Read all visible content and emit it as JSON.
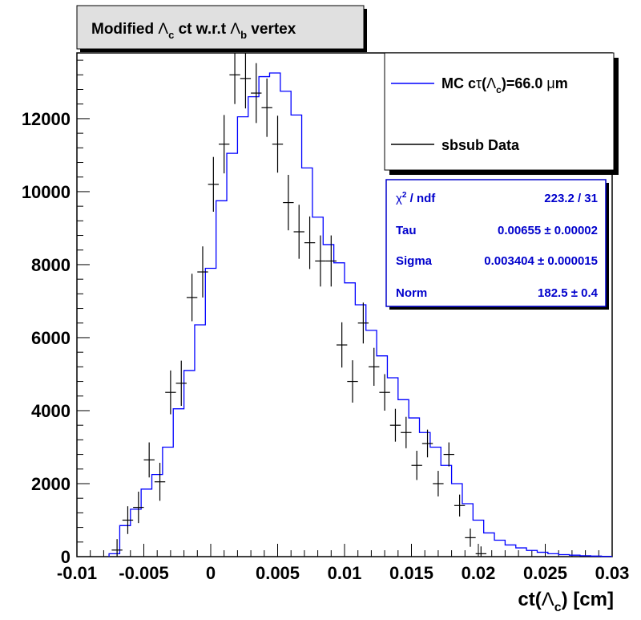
{
  "chart_data": {
    "type": "line",
    "title": {
      "prefix": "Modified ",
      "lambda": "Λ",
      "sub_c": "c",
      "mid": " ct w.r.t ",
      "sub_b": "b",
      "suffix": " vertex"
    },
    "xlabel": "ct(Λc) [cm]",
    "xlabel_parts": {
      "pre": "ct(",
      "lambda": "Λ",
      "sub": "c",
      "post": ") [cm]"
    },
    "ylabel": "",
    "xlim": [
      -0.01,
      0.03
    ],
    "ylim": [
      0,
      13800
    ],
    "x_ticks": [
      "-0.01",
      "-0.005",
      "0",
      "0.005",
      "0.01",
      "0.015",
      "0.02",
      "0.025",
      "0.03"
    ],
    "x_tick_values": [
      -0.01,
      -0.005,
      0,
      0.005,
      0.01,
      0.015,
      0.02,
      0.025,
      0.03
    ],
    "y_ticks": [
      "0",
      "2000",
      "4000",
      "6000",
      "8000",
      "10000",
      "12000"
    ],
    "y_tick_values": [
      0,
      2000,
      4000,
      6000,
      8000,
      10000,
      12000
    ],
    "bin_width": 0.0008,
    "series": [
      {
        "name": "MC cτ(Λc)=66.0 μm",
        "style": "histogram",
        "color": "#0000ff",
        "bin_edges": [
          -0.0076,
          -0.0068,
          -0.006,
          -0.0052,
          -0.0044,
          -0.0036,
          -0.0028,
          -0.002,
          -0.0012,
          -0.0004,
          0.0004,
          0.0012,
          0.002,
          0.0028,
          0.0036,
          0.0044,
          0.0052,
          0.006,
          0.0068,
          0.0076,
          0.0084,
          0.0092,
          0.01,
          0.0108,
          0.0116,
          0.0124,
          0.0132,
          0.014,
          0.0148,
          0.0156,
          0.0164,
          0.0172,
          0.018,
          0.0188,
          0.0196,
          0.0204,
          0.0212,
          0.022,
          0.0228,
          0.0236,
          0.0244,
          0.0252,
          0.026,
          0.0268,
          0.0276,
          0.0284,
          0.0292,
          0.03
        ],
        "values": [
          80,
          850,
          1300,
          1850,
          2250,
          3000,
          4050,
          5100,
          6350,
          7900,
          9750,
          11050,
          12050,
          12600,
          13150,
          13250,
          12750,
          12100,
          10650,
          9300,
          8550,
          8050,
          7500,
          6900,
          6200,
          5500,
          4900,
          4300,
          3800,
          3400,
          3000,
          2500,
          2000,
          1450,
          1000,
          650,
          450,
          320,
          240,
          170,
          120,
          80,
          55,
          40,
          25,
          15,
          8
        ]
      },
      {
        "name": "sbsub Data",
        "style": "errorbar",
        "color": "#000000",
        "x": [
          -0.007,
          -0.0062,
          -0.0054,
          -0.0046,
          -0.0038,
          -0.003,
          -0.0022,
          -0.0014,
          -0.0006,
          0.0002,
          0.001,
          0.0018,
          0.0026,
          0.0034,
          0.0042,
          0.005,
          0.0058,
          0.0066,
          0.0074,
          0.0082,
          0.009,
          0.0098,
          0.0106,
          0.0114,
          0.0122,
          0.013,
          0.0138,
          0.0146,
          0.0154,
          0.0162,
          0.017,
          0.0178,
          0.0186,
          0.0194,
          0.0202
        ],
        "y": [
          180,
          1000,
          1350,
          2650,
          2050,
          4500,
          4750,
          7100,
          7800,
          10200,
          11300,
          13200,
          13100,
          12700,
          12300,
          11300,
          9700,
          8900,
          8600,
          8100,
          8100,
          5800,
          4800,
          6400,
          5200,
          4500,
          3600,
          3400,
          2500,
          3100,
          2000,
          2800,
          1400,
          520,
          80
        ],
        "yerr": [
          300,
          380,
          430,
          480,
          520,
          600,
          620,
          650,
          700,
          750,
          800,
          800,
          820,
          820,
          800,
          780,
          760,
          740,
          720,
          700,
          700,
          620,
          580,
          560,
          520,
          500,
          450,
          430,
          400,
          380,
          350,
          330,
          300,
          250,
          200
        ]
      }
    ],
    "legend": {
      "placement": "top-right",
      "entries": [
        {
          "label_pre": "MC c",
          "label_tau": "τ",
          "label_open": "(",
          "label_lambda": "Λ",
          "label_sub": "c",
          "label_post": ")=66.0 ",
          "label_mu": "μ",
          "label_m": "m",
          "color": "#0000ff"
        },
        {
          "label": "sbsub Data",
          "color": "#000000"
        }
      ]
    },
    "stats": {
      "placement": "top-right",
      "color": "#0000cc",
      "rows": [
        {
          "name_pre": "χ",
          "name_sup": "2",
          "name_post": " / ndf",
          "value": "223.2 / 31"
        },
        {
          "name": "Tau",
          "value": "0.00655 ± 0.00002"
        },
        {
          "name": "Sigma",
          "value": "0.003404 ± 0.000015"
        },
        {
          "name": "Norm",
          "value": "182.5 ± 0.4"
        }
      ]
    },
    "grid": false
  }
}
